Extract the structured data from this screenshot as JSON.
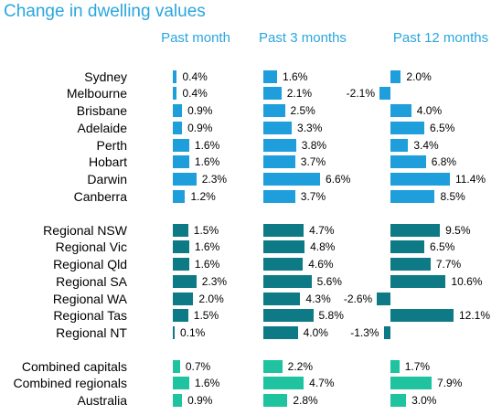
{
  "chart_data": {
    "type": "bar",
    "title": "Change in dwelling values",
    "columns": [
      "Past month",
      "Past 3 months",
      "Past 12 months"
    ],
    "colors": {
      "capitals": "#1e9fdb",
      "regionals": "#0d7a86",
      "combined": "#1fc3a0",
      "title": "#2aa6de"
    },
    "groups": [
      {
        "key": "capitals",
        "rows": [
          {
            "label": "Sydney",
            "values": [
              0.4,
              1.6,
              2.0
            ],
            "value_labels": [
              "0.4%",
              "1.6%",
              "2.0%"
            ]
          },
          {
            "label": "Melbourne",
            "values": [
              0.4,
              2.1,
              -2.1
            ],
            "value_labels": [
              "0.4%",
              "2.1%",
              "-2.1%"
            ]
          },
          {
            "label": "Brisbane",
            "values": [
              0.9,
              2.5,
              4.0
            ],
            "value_labels": [
              "0.9%",
              "2.5%",
              "4.0%"
            ]
          },
          {
            "label": "Adelaide",
            "values": [
              0.9,
              3.3,
              6.5
            ],
            "value_labels": [
              "0.9%",
              "3.3%",
              "6.5%"
            ]
          },
          {
            "label": "Perth",
            "values": [
              1.6,
              3.8,
              3.4
            ],
            "value_labels": [
              "1.6%",
              "3.8%",
              "3.4%"
            ]
          },
          {
            "label": "Hobart",
            "values": [
              1.6,
              3.7,
              6.8
            ],
            "value_labels": [
              "1.6%",
              "3.7%",
              "6.8%"
            ]
          },
          {
            "label": "Darwin",
            "values": [
              2.3,
              6.6,
              11.4
            ],
            "value_labels": [
              "2.3%",
              "6.6%",
              "11.4%"
            ]
          },
          {
            "label": "Canberra",
            "values": [
              1.2,
              3.7,
              8.5
            ],
            "value_labels": [
              "1.2%",
              "3.7%",
              "8.5%"
            ]
          }
        ]
      },
      {
        "key": "regionals",
        "rows": [
          {
            "label": "Regional NSW",
            "values": [
              1.5,
              4.7,
              9.5
            ],
            "value_labels": [
              "1.5%",
              "4.7%",
              "9.5%"
            ]
          },
          {
            "label": "Regional Vic",
            "values": [
              1.6,
              4.8,
              6.5
            ],
            "value_labels": [
              "1.6%",
              "4.8%",
              "6.5%"
            ]
          },
          {
            "label": "Regional Qld",
            "values": [
              1.6,
              4.6,
              7.7
            ],
            "value_labels": [
              "1.6%",
              "4.6%",
              "7.7%"
            ]
          },
          {
            "label": "Regional SA",
            "values": [
              2.3,
              5.6,
              10.6
            ],
            "value_labels": [
              "2.3%",
              "5.6%",
              "10.6%"
            ]
          },
          {
            "label": "Regional WA",
            "values": [
              2.0,
              4.3,
              -2.6
            ],
            "value_labels": [
              "2.0%",
              "4.3%",
              "-2.6%"
            ]
          },
          {
            "label": "Regional Tas",
            "values": [
              1.5,
              5.8,
              12.1
            ],
            "value_labels": [
              "1.5%",
              "5.8%",
              "12.1%"
            ]
          },
          {
            "label": "Regional NT",
            "values": [
              0.1,
              4.0,
              -1.3
            ],
            "value_labels": [
              "0.1%",
              "4.0%",
              "-1.3%"
            ]
          }
        ]
      },
      {
        "key": "combined",
        "rows": [
          {
            "label": "Combined capitals",
            "values": [
              0.7,
              2.2,
              1.7
            ],
            "value_labels": [
              "0.7%",
              "2.2%",
              "1.7%"
            ]
          },
          {
            "label": "Combined regionals",
            "values": [
              1.6,
              4.7,
              7.9
            ],
            "value_labels": [
              "1.6%",
              "4.7%",
              "7.9%"
            ]
          },
          {
            "label": "Australia",
            "values": [
              0.9,
              2.8,
              3.0
            ],
            "value_labels": [
              "0.9%",
              "2.8%",
              "3.0%"
            ]
          }
        ]
      }
    ]
  }
}
